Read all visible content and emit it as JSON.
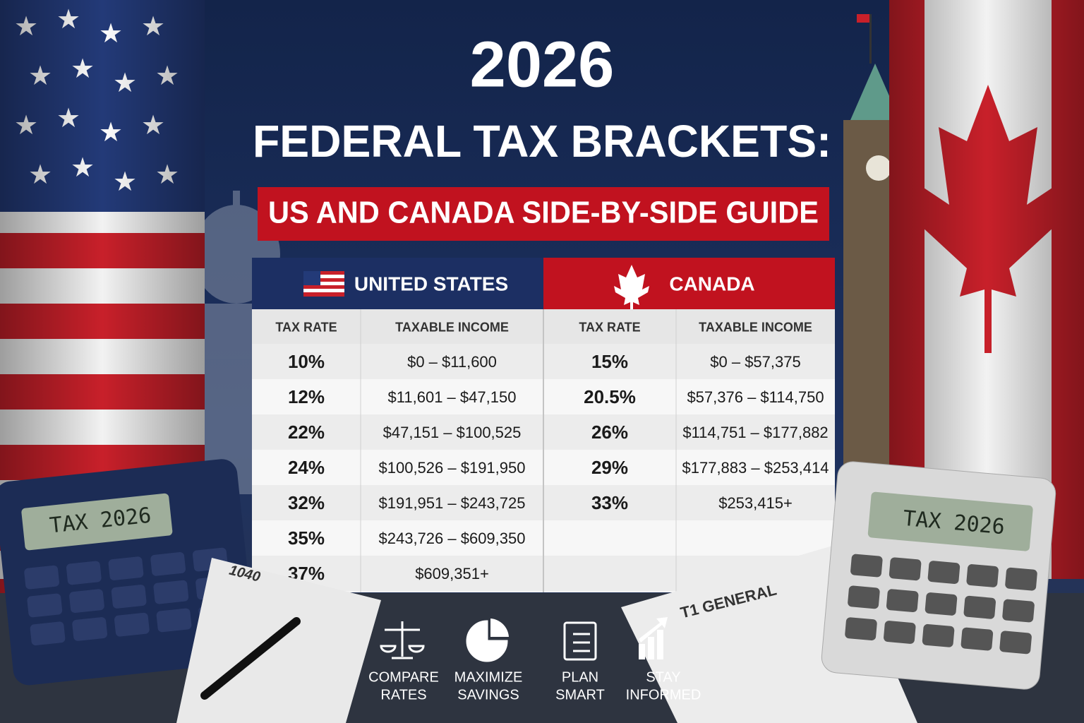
{
  "header": {
    "year": "2026",
    "title": "FEDERAL TAX BRACKETS:",
    "subtitle": "US AND CANADA SIDE-BY-SIDE GUIDE"
  },
  "table": {
    "us": {
      "name": "UNITED STATES",
      "columns": [
        "TAX RATE",
        "TAXABLE INCOME"
      ],
      "rows": [
        [
          "10%",
          "$0 – $11,600"
        ],
        [
          "12%",
          "$11,601 – $47,150"
        ],
        [
          "22%",
          "$47,151 – $100,525"
        ],
        [
          "24%",
          "$100,526 – $191,950"
        ],
        [
          "32%",
          "$191,951 – $243,725"
        ],
        [
          "35%",
          "$243,726 – $609,350"
        ],
        [
          "37%",
          "$609,351+"
        ]
      ]
    },
    "canada": {
      "name": "CANADA",
      "columns": [
        "TAX RATE",
        "TAXABLE INCOME"
      ],
      "rows": [
        [
          "15%",
          "$0 – $57,375"
        ],
        [
          "20.5%",
          "$57,376 – $114,750"
        ],
        [
          "26%",
          "$114,751 – $177,882"
        ],
        [
          "29%",
          "$177,883 – $253,414"
        ],
        [
          "33%",
          "$253,415+"
        ]
      ]
    }
  },
  "features": [
    {
      "lines": [
        "COMPARE",
        "RATES"
      ]
    },
    {
      "lines": [
        "MAXIMIZE",
        "SAVINGS"
      ]
    },
    {
      "lines": [
        "PLAN",
        "SMART"
      ]
    },
    {
      "lines": [
        "STAY",
        "INFORMED"
      ]
    }
  ],
  "props": {
    "us_calculator": "TAX 2026",
    "canada_calculator": "TAX 2026",
    "us_form": "1040",
    "canada_form": "T1 GENERAL"
  }
}
